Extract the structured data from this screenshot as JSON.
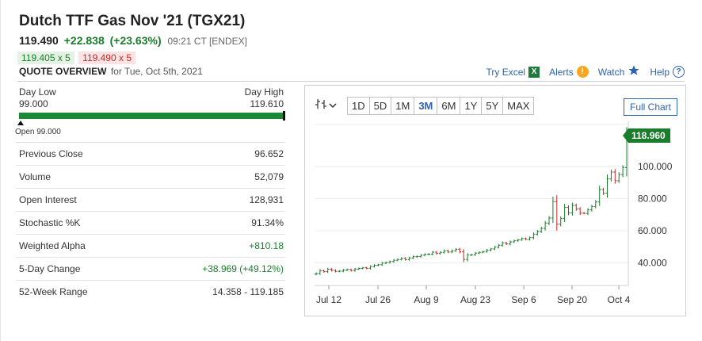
{
  "header": {
    "title": "Dutch TTF Gas Nov '21 (TGX21)",
    "last": "119.490",
    "change": "+22.838",
    "change_pct": "(+23.63%)",
    "time": "09:21 CT [ENDEX]",
    "bid": "119.405 x 5",
    "ask": "119.490 x 5",
    "quote_overview_label": "QUOTE OVERVIEW",
    "quote_overview_date": "for Tue, Oct 5th, 2021"
  },
  "toolbar": {
    "try_excel": "Try Excel",
    "excel_icon_text": "X",
    "alerts": "Alerts",
    "alerts_icon_text": "!",
    "watch": "Watch",
    "help": "Help",
    "help_icon_text": "?"
  },
  "day_range": {
    "low_label": "Day Low",
    "low_value": "99.000",
    "high_label": "Day High",
    "high_value": "119.610",
    "open_label": "Open 99.000"
  },
  "stats": [
    {
      "label": "Previous Close",
      "value": "96.652",
      "positive": false
    },
    {
      "label": "Volume",
      "value": "52,079",
      "positive": false
    },
    {
      "label": "Open Interest",
      "value": "128,931",
      "positive": false
    },
    {
      "label": "Stochastic %K",
      "value": "91.34%",
      "positive": false
    },
    {
      "label": "Weighted Alpha",
      "value": "+810.18",
      "positive": true
    },
    {
      "label": "5-Day Change",
      "value": "+38.969 (+49.12%)",
      "positive": true
    },
    {
      "label": "52-Week Range",
      "value": "14.358 - 119.185",
      "positive": false
    }
  ],
  "chart_controls": {
    "ranges": [
      "1D",
      "5D",
      "1M",
      "3M",
      "6M",
      "1Y",
      "5Y",
      "MAX"
    ],
    "active_range": "3M",
    "full_chart": "Full Chart"
  },
  "colors": {
    "up": "#1a7d2c",
    "down": "#c62828",
    "accent": "#2d63b5"
  },
  "chart_data": {
    "type": "ohlc",
    "x_ticks": [
      "Jul 12",
      "Jul 26",
      "Aug 9",
      "Aug 23",
      "Sep 6",
      "Sep 20",
      "Oct 4"
    ],
    "y_ticks": [
      "40.000",
      "60.000",
      "80.000",
      "100.000"
    ],
    "y_tick_values": [
      40,
      60,
      80,
      100
    ],
    "ylim": [
      26,
      128
    ],
    "last_price_label": "118.960",
    "last_price": 118.96,
    "close": [
      33.5,
      35.2,
      34.6,
      36.1,
      35.4,
      34.8,
      34.9,
      35.6,
      35.9,
      35.3,
      36.2,
      36.6,
      37.0,
      36.7,
      37.8,
      38.5,
      38.9,
      39.9,
      40.3,
      40.9,
      41.7,
      42.2,
      42.9,
      42.1,
      43.1,
      43.9,
      44.0,
      44.8,
      45.4,
      45.5,
      46.7,
      45.9,
      46.6,
      47.6,
      46.8,
      47.6,
      48.5,
      46.9,
      42.2,
      44.9,
      45.1,
      46.1,
      46.6,
      47.1,
      48.0,
      48.7,
      49.8,
      51.0,
      52.5,
      51.8,
      53.1,
      53.8,
      54.4,
      55.2,
      54.7,
      55.7,
      57.9,
      59.6,
      61.5,
      64.8,
      67.9,
      78.1,
      64.1,
      67.6,
      74.5,
      71.1,
      75.8,
      73.5,
      71.0,
      70.8,
      73.0,
      75.1,
      77.9,
      85.6,
      83.3,
      92.2,
      96.5,
      91.1,
      94.9,
      99.2,
      118.96
    ]
  }
}
